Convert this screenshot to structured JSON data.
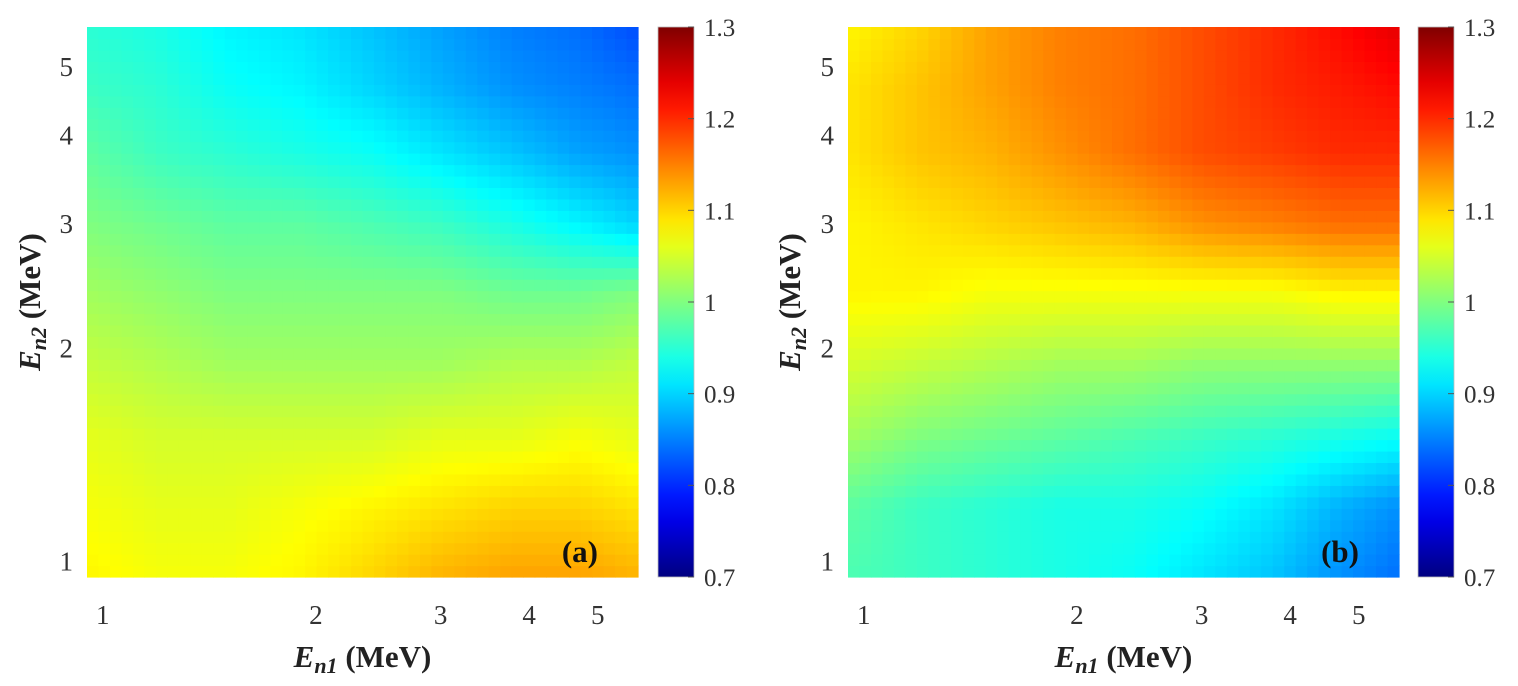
{
  "chart_data": [
    {
      "type": "heatmap",
      "panel_label": "(a)",
      "xlabel_main": "E",
      "xlabel_sub": "n1",
      "xlabel_unit": " (MeV)",
      "ylabel_main": "E",
      "ylabel_sub": "n2",
      "ylabel_unit": " (MeV)",
      "x_scale": "log",
      "y_scale": "log",
      "xlim": [
        0.95,
        5.7
      ],
      "ylim": [
        0.95,
        5.7
      ],
      "xticks": [
        1,
        2,
        3,
        4,
        5
      ],
      "yticks": [
        1,
        2,
        3,
        4,
        5
      ],
      "x": [
        0.95,
        1.2,
        1.5,
        1.9,
        2.4,
        3.0,
        3.8,
        4.7,
        5.7
      ],
      "y": [
        0.95,
        1.2,
        1.5,
        1.9,
        2.4,
        3.0,
        3.8,
        4.7,
        5.7
      ],
      "z": [
        [
          1.08,
          1.07,
          1.07,
          1.08,
          1.1,
          1.12,
          1.13,
          1.13,
          1.12
        ],
        [
          1.07,
          1.06,
          1.06,
          1.07,
          1.08,
          1.09,
          1.1,
          1.1,
          1.09
        ],
        [
          1.06,
          1.05,
          1.05,
          1.05,
          1.05,
          1.06,
          1.06,
          1.07,
          1.06
        ],
        [
          1.04,
          1.03,
          1.02,
          1.02,
          1.02,
          1.02,
          1.03,
          1.03,
          1.04
        ],
        [
          1.02,
          1.01,
          1.0,
          1.0,
          1.0,
          1.0,
          0.99,
          0.99,
          1.0
        ],
        [
          1.0,
          0.99,
          0.98,
          0.98,
          0.97,
          0.96,
          0.94,
          0.92,
          0.9
        ],
        [
          0.98,
          0.96,
          0.95,
          0.94,
          0.93,
          0.91,
          0.89,
          0.87,
          0.86
        ],
        [
          0.96,
          0.95,
          0.93,
          0.92,
          0.9,
          0.88,
          0.86,
          0.85,
          0.84
        ],
        [
          0.95,
          0.94,
          0.92,
          0.91,
          0.89,
          0.87,
          0.85,
          0.84,
          0.82
        ]
      ],
      "colorbar": {
        "min": 0.7,
        "max": 1.3,
        "ticks": [
          "1.3",
          "1.2",
          "1.1",
          "1",
          "0.9",
          "0.8",
          "0.7"
        ],
        "colormap": "jet"
      }
    },
    {
      "type": "heatmap",
      "panel_label": "(b)",
      "xlabel_main": "E",
      "xlabel_sub": "n1",
      "xlabel_unit": " (MeV)",
      "ylabel_main": "E",
      "ylabel_sub": "n2",
      "ylabel_unit": " (MeV)",
      "x_scale": "log",
      "y_scale": "log",
      "xlim": [
        0.95,
        5.7
      ],
      "ylim": [
        0.95,
        5.7
      ],
      "xticks": [
        1,
        2,
        3,
        4,
        5
      ],
      "yticks": [
        1,
        2,
        3,
        4,
        5
      ],
      "x": [
        0.95,
        1.2,
        1.5,
        1.9,
        2.4,
        3.0,
        3.8,
        4.7,
        5.7
      ],
      "y": [
        0.95,
        1.2,
        1.5,
        1.9,
        2.4,
        3.0,
        3.8,
        4.7,
        5.7
      ],
      "z": [
        [
          0.97,
          0.96,
          0.95,
          0.94,
          0.93,
          0.91,
          0.89,
          0.86,
          0.84
        ],
        [
          0.98,
          0.96,
          0.95,
          0.94,
          0.94,
          0.93,
          0.91,
          0.88,
          0.86
        ],
        [
          1.02,
          1.0,
          0.99,
          0.98,
          0.97,
          0.96,
          0.95,
          0.94,
          0.93
        ],
        [
          1.05,
          1.04,
          1.03,
          1.02,
          1.02,
          1.01,
          1.01,
          1.01,
          1.01
        ],
        [
          1.08,
          1.08,
          1.07,
          1.07,
          1.07,
          1.07,
          1.07,
          1.08,
          1.08
        ],
        [
          1.08,
          1.09,
          1.1,
          1.11,
          1.12,
          1.14,
          1.15,
          1.16,
          1.16
        ],
        [
          1.09,
          1.11,
          1.12,
          1.14,
          1.16,
          1.18,
          1.19,
          1.2,
          1.2
        ],
        [
          1.09,
          1.11,
          1.13,
          1.15,
          1.16,
          1.18,
          1.2,
          1.21,
          1.22
        ],
        [
          1.08,
          1.1,
          1.13,
          1.15,
          1.16,
          1.18,
          1.2,
          1.22,
          1.24
        ]
      ],
      "colorbar": {
        "min": 0.7,
        "max": 1.3,
        "ticks": [
          "1.3",
          "1.2",
          "1.1",
          "1",
          "0.9",
          "0.8",
          "0.7"
        ],
        "colormap": "jet"
      }
    }
  ]
}
